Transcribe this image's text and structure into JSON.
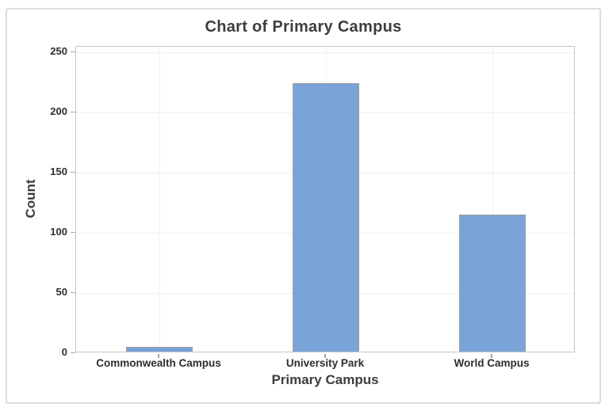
{
  "chart_data": {
    "type": "bar",
    "title": "Chart of Primary Campus",
    "xlabel": "Primary Campus",
    "ylabel": "Count",
    "categories": [
      "Commonwealth Campus",
      "University Park",
      "World Campus"
    ],
    "values": [
      4,
      223,
      114
    ],
    "yticks": [
      0,
      50,
      100,
      150,
      200,
      250
    ],
    "ylim": [
      0,
      250
    ],
    "grid": {
      "horizontal": true,
      "vertical": true
    },
    "legend_position": "none"
  },
  "colors": {
    "bar_fill": "#7AA3D8",
    "bar_border": "#9E9E9E",
    "plot_border": "#C5C5C5",
    "gridline_h": "#EFEFEF",
    "gridline_v": "#F1F1F1",
    "tick": "#A6A6A6",
    "title_text": "#3D3D3D",
    "tick_text": "#2E2E2E",
    "frame_border": "#DCDCDC"
  }
}
